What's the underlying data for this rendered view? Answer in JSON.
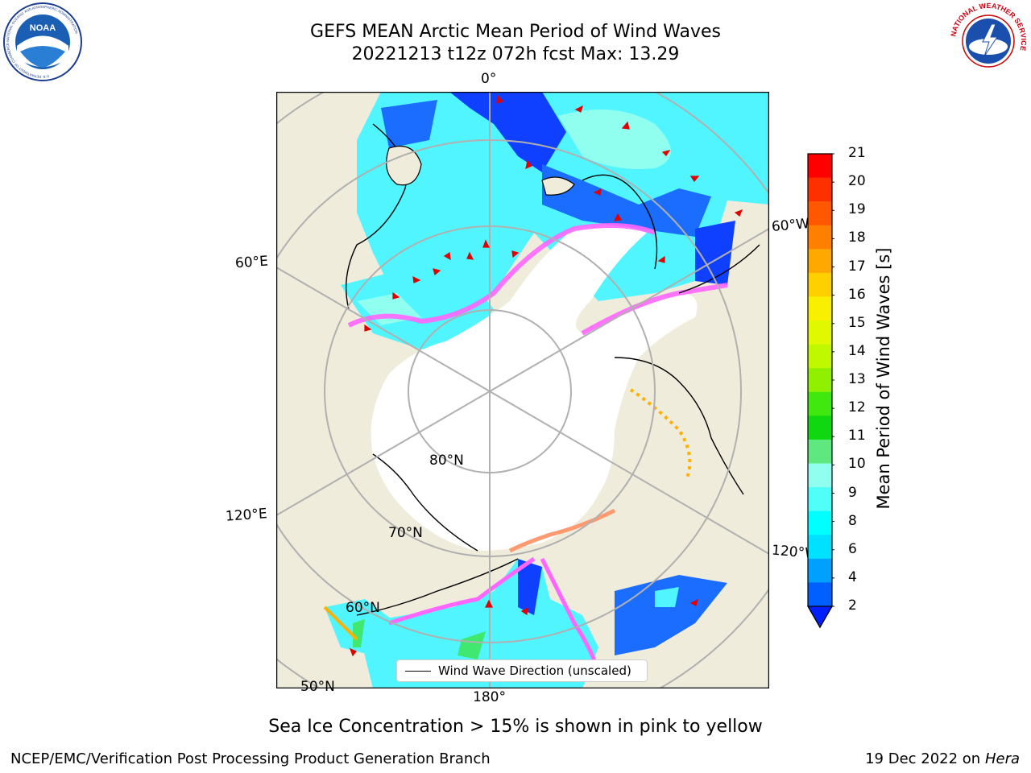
{
  "header": {
    "title_line1": "GEFS MEAN Arctic Mean Period of Wind Waves",
    "title_line2": "20221213 t12z 072h fcst   Max: 13.29"
  },
  "logos": {
    "noaa_text": "NOAA",
    "noaa_ring_top": "NATIONAL OCEANIC AND ATMOSPHERIC ADMINISTRATION",
    "noaa_ring_bottom": "U.S. DEPARTMENT OF COMMERCE",
    "nws_ring": "NATIONAL WEATHER SERVICE"
  },
  "map": {
    "projection": "north-polar-stereographic",
    "lon_labels": {
      "top": "0°",
      "left_upper": "60°E",
      "left_lower": "120°E",
      "bottom": "180°",
      "right_upper": "60°W",
      "right_lower": "120°W"
    },
    "lat_labels": {
      "inner": "80°N",
      "middle": "70°N",
      "outer": "60°N",
      "outermost": "50°N"
    },
    "colors": {
      "land": "#efecdc",
      "sea_ice": "#ffffff",
      "coastline": "#000000",
      "gridline": "#b0b0b0",
      "arrows": "#e00000"
    }
  },
  "legend": {
    "label": "Wind Wave Direction (unscaled)"
  },
  "colorbar": {
    "title": "Mean Period of Wind Waves [s]",
    "extend": "min",
    "ticks": [
      "21",
      "20",
      "19",
      "18",
      "17",
      "16",
      "15",
      "14",
      "13",
      "12",
      "11",
      "10",
      "9",
      "8",
      "6",
      "4",
      "2"
    ],
    "colors": [
      "#ff0000",
      "#ff3000",
      "#ff5800",
      "#ff8000",
      "#ffa800",
      "#ffd000",
      "#f8f000",
      "#e0f800",
      "#c0f800",
      "#90f000",
      "#40e810",
      "#10d810",
      "#60e880",
      "#90fff0",
      "#50fff8",
      "#00ffff",
      "#00e0ff",
      "#00a0ff",
      "#0060ff"
    ],
    "under_color": "#0020ff"
  },
  "footer": {
    "caption": "Sea Ice Concentration > 15% is shown in pink to yellow",
    "credit": "NCEP/EMC/Verification Post Processing Product Generation Branch",
    "date": "19 Dec 2022 on",
    "machine": "Hera"
  }
}
